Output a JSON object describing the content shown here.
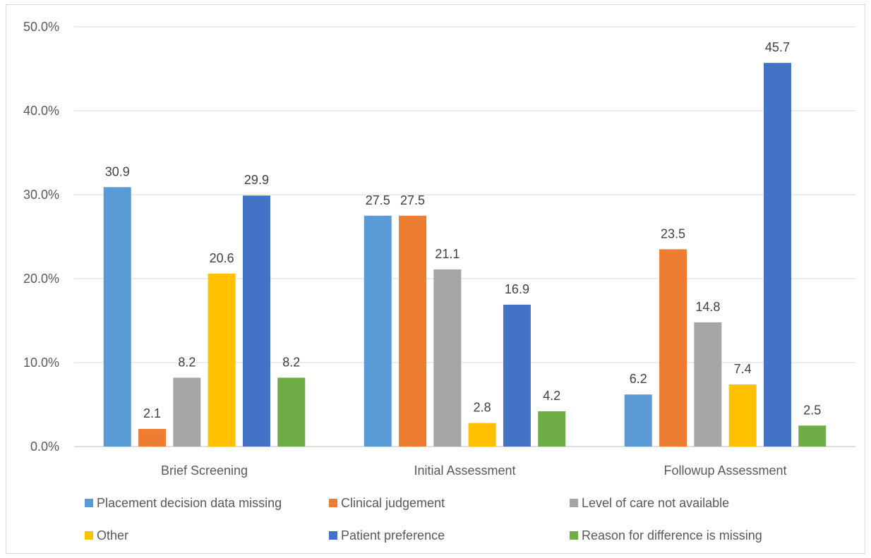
{
  "chart_data": {
    "type": "bar",
    "title": "",
    "xlabel": "",
    "ylabel": "",
    "ylim": [
      0,
      50
    ],
    "y_ticks": [
      "0.0%",
      "10.0%",
      "20.0%",
      "30.0%",
      "40.0%",
      "50.0%"
    ],
    "grid": true,
    "legend_position": "bottom",
    "categories": [
      "Brief Screening",
      "Initial Assessment",
      "Followup Assessment"
    ],
    "series": [
      {
        "name": "Placement decision data missing",
        "color": "#5b9bd5",
        "values": [
          30.9,
          27.5,
          6.2
        ],
        "labels": [
          "30.9",
          "27.5",
          "6.2"
        ]
      },
      {
        "name": "Clinical judgement",
        "color": "#ed7d31",
        "values": [
          2.1,
          27.5,
          23.5
        ],
        "labels": [
          "2.1",
          "27.5",
          "23.5"
        ]
      },
      {
        "name": "Level of care not available",
        "color": "#a5a5a5",
        "values": [
          8.2,
          21.1,
          14.8
        ],
        "labels": [
          "8.2",
          "21.1",
          "14.8"
        ]
      },
      {
        "name": "Other",
        "color": "#ffc000",
        "values": [
          20.6,
          2.8,
          7.4
        ],
        "labels": [
          "20.6",
          "2.8",
          "7.4"
        ]
      },
      {
        "name": "Patient preference",
        "color": "#4472c4",
        "values": [
          29.9,
          16.9,
          45.7
        ],
        "labels": [
          "29.9",
          "16.9",
          "45.7"
        ]
      },
      {
        "name": "Reason for difference is missing",
        "color": "#70ad47",
        "values": [
          8.2,
          4.2,
          2.5
        ],
        "labels": [
          "8.2",
          "4.2",
          "2.5"
        ]
      }
    ]
  }
}
